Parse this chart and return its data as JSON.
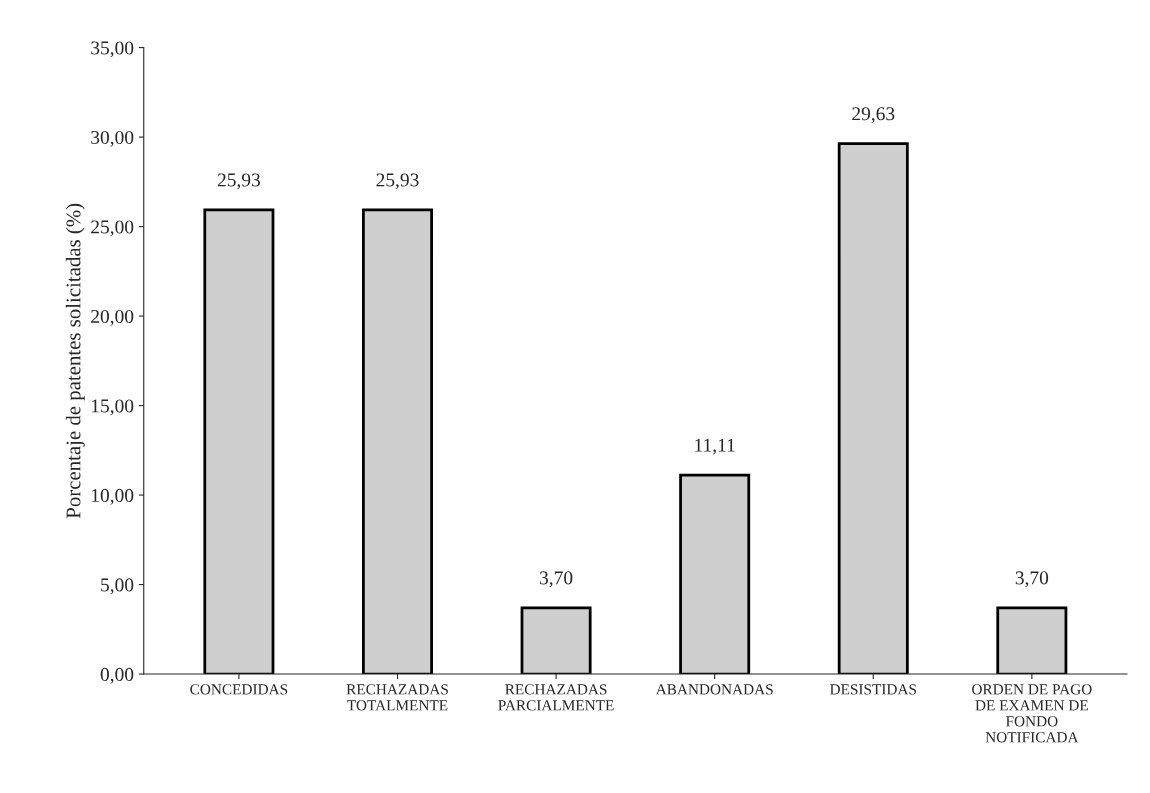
{
  "chart_data": {
    "type": "bar",
    "ylabel": "Porcentaje de patentes solicitadas (%)",
    "categories": [
      "CONCEDIDAS",
      "RECHAZADAS\nTOTALMENTE",
      "RECHAZADAS\nPARCIALMENTE",
      "ABANDONADAS",
      "DESISTIDAS",
      "ORDEN DE PAGO\nDE EXAMEN DE\nFONDO\nNOTIFICADA"
    ],
    "values": [
      25.93,
      25.93,
      3.7,
      11.11,
      29.63,
      3.7
    ],
    "value_labels": [
      "25,93",
      "25,93",
      "3,70",
      "11,11",
      "29,63",
      "3,70"
    ],
    "color": "#cfcfcf",
    "ylim": [
      0,
      35
    ],
    "yticks": [
      {
        "value": 0,
        "label": "0,00"
      },
      {
        "value": 5,
        "label": "5,00"
      },
      {
        "value": 10,
        "label": "10,00"
      },
      {
        "value": 15,
        "label": "15,00"
      },
      {
        "value": 20,
        "label": "20,00"
      },
      {
        "value": 25,
        "label": "25,00"
      },
      {
        "value": 30,
        "label": "30,00"
      },
      {
        "value": 35,
        "label": "35,00"
      }
    ],
    "grid": false
  }
}
